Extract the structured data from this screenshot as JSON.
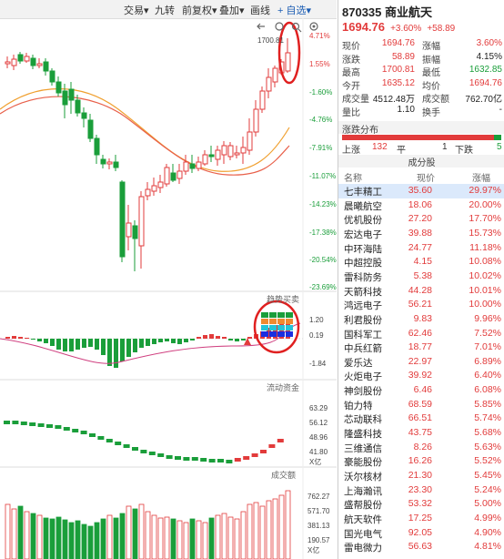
{
  "toolbar": {
    "items": [
      {
        "label": "交易",
        "arrow": "▾"
      },
      {
        "label": "九转",
        "arrow": ""
      },
      {
        "label": "前复权",
        "arrow": "▾"
      },
      {
        "label": "叠加",
        "arrow": "▾"
      },
      {
        "label": "画线",
        "arrow": ""
      },
      {
        "label": "+ 自选",
        "arrow": "▾"
      }
    ],
    "icons": [
      "back-icon",
      "refresh-icon",
      "search-icon",
      "settings-icon"
    ]
  },
  "kline": {
    "peak_label": "1700.81",
    "y_labels": [
      "4.71%",
      "1.55%",
      "-1.60%",
      "-4.76%",
      "-7.91%",
      "-11.07%",
      "-14.23%",
      "-17.38%",
      "-20.54%",
      "-23.69%"
    ]
  },
  "macd": {
    "title": "趋势买卖",
    "y_labels": [
      "1.20",
      "0.19",
      "-1.84"
    ]
  },
  "flow": {
    "title": "流动资金",
    "y_labels": [
      "63.29",
      "56.12",
      "48.96",
      "41.80",
      "X亿"
    ]
  },
  "volume": {
    "title": "成交额",
    "y_labels": [
      "762.27",
      "571.70",
      "381.13",
      "190.57",
      "X亿"
    ]
  },
  "quote": {
    "code": "870335",
    "name": "商业航天",
    "price": "1694.76",
    "change_pct": "+3.60%",
    "change": "+58.89",
    "fields": [
      {
        "l1": "现价",
        "v1": "1694.76",
        "c1": "red",
        "l2": "涨幅",
        "v2": "3.60%",
        "c2": "red"
      },
      {
        "l1": "涨跌",
        "v1": "58.89",
        "c1": "red",
        "l2": "振幅",
        "v2": "4.15%",
        "c2": "blk"
      },
      {
        "l1": "最高",
        "v1": "1700.81",
        "c1": "red",
        "l2": "最低",
        "v2": "1632.85",
        "c2": "green"
      },
      {
        "l1": "今开",
        "v1": "1635.12",
        "c1": "red",
        "l2": "均价",
        "v2": "1694.76",
        "c2": "red"
      },
      {
        "l1": "成交量",
        "v1": "4512.48万",
        "c1": "blk",
        "l2": "成交额",
        "v2": "762.70亿",
        "c2": "blk"
      },
      {
        "l1": "量比",
        "v1": "1.10",
        "c1": "blk",
        "l2": "换手",
        "v2": "-",
        "c2": "blk"
      }
    ],
    "breadth_title": "涨跌分布",
    "up_label": "上涨",
    "up_count": "132",
    "flat_label": "平",
    "flat_count": "1",
    "down_label": "下跌",
    "down_count": "5",
    "up_ratio": 0.957
  },
  "components": {
    "title": "成分股",
    "headers": [
      "名称",
      "现价",
      "涨幅"
    ],
    "rows": [
      {
        "name": "七丰精工",
        "price": "35.60",
        "pct": "29.97%"
      },
      {
        "name": "晨曦航空",
        "price": "18.06",
        "pct": "20.00%"
      },
      {
        "name": "优机股份",
        "price": "27.20",
        "pct": "17.70%"
      },
      {
        "name": "宏达电子",
        "price": "39.88",
        "pct": "15.73%"
      },
      {
        "name": "中环海陆",
        "price": "24.77",
        "pct": "11.18%"
      },
      {
        "name": "中超控股",
        "price": "4.15",
        "pct": "10.08%"
      },
      {
        "name": "雷科防务",
        "price": "5.38",
        "pct": "10.02%"
      },
      {
        "name": "天箭科技",
        "price": "44.28",
        "pct": "10.01%"
      },
      {
        "name": "鸿远电子",
        "price": "56.21",
        "pct": "10.00%"
      },
      {
        "name": "利君股份",
        "price": "9.83",
        "pct": "9.96%"
      },
      {
        "name": "国科军工",
        "price": "62.46",
        "pct": "7.52%"
      },
      {
        "name": "中兵红箭",
        "price": "18.77",
        "pct": "7.01%"
      },
      {
        "name": "爱乐达",
        "price": "22.97",
        "pct": "6.89%"
      },
      {
        "name": "火炬电子",
        "price": "39.92",
        "pct": "6.40%"
      },
      {
        "name": "神剑股份",
        "price": "6.46",
        "pct": "6.08%"
      },
      {
        "name": "铂力特",
        "price": "68.59",
        "pct": "5.85%"
      },
      {
        "name": "芯动联科",
        "price": "66.51",
        "pct": "5.74%"
      },
      {
        "name": "隆盛科技",
        "price": "43.75",
        "pct": "5.68%"
      },
      {
        "name": "三维通信",
        "price": "8.26",
        "pct": "5.63%"
      },
      {
        "name": "豪能股份",
        "price": "16.26",
        "pct": "5.52%"
      },
      {
        "name": "沃尔核材",
        "price": "21.30",
        "pct": "5.45%"
      },
      {
        "name": "上海瀚讯",
        "price": "23.30",
        "pct": "5.24%"
      },
      {
        "name": "盛帮股份",
        "price": "53.32",
        "pct": "5.00%"
      },
      {
        "name": "航天软件",
        "price": "17.25",
        "pct": "4.99%"
      },
      {
        "name": "国光电气",
        "price": "92.05",
        "pct": "4.90%"
      },
      {
        "name": "雷电微力",
        "price": "56.63",
        "pct": "4.81%"
      }
    ]
  },
  "colors": {
    "up": "#e23b3b",
    "down": "#1a9e3a",
    "ma_orange": "#f0a030",
    "ma_red": "#e8604a",
    "highlight": "#e02020"
  }
}
